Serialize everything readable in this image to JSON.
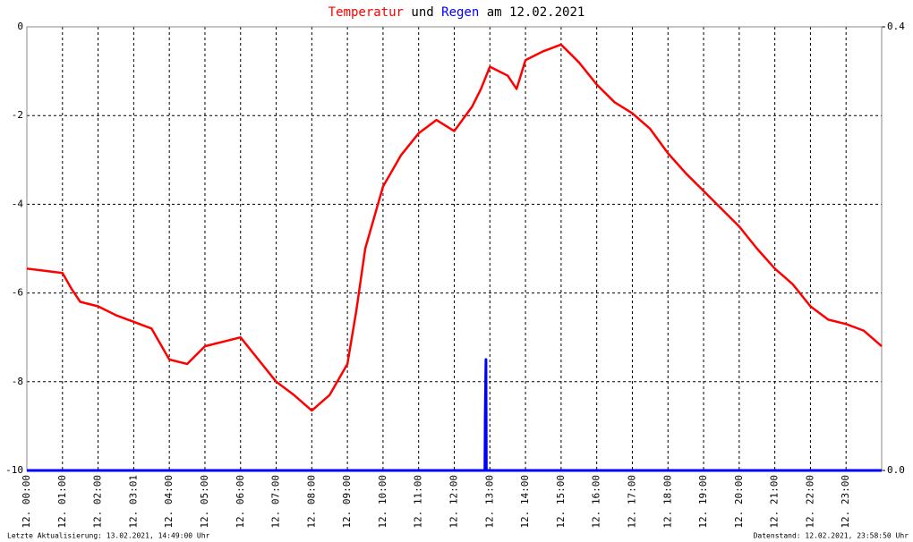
{
  "chart_data": {
    "type": "line",
    "title_connector": "und",
    "title_suffix": "am 12.02.2021",
    "footer_left": "Letzte Aktualisierung: 13.02.2021, 14:49:00 Uhr",
    "footer_right": "Datenstand: 12.02.2021, 23:58:50 Uhr",
    "xlim": [
      0,
      24
    ],
    "xticks": [
      {
        "value": 0,
        "label": "12. 00:00"
      },
      {
        "value": 1,
        "label": "12. 01:00"
      },
      {
        "value": 2,
        "label": "12. 02:00"
      },
      {
        "value": 3,
        "label": "12. 03:01"
      },
      {
        "value": 4,
        "label": "12. 04:00"
      },
      {
        "value": 5,
        "label": "12. 05:00"
      },
      {
        "value": 6,
        "label": "12. 06:00"
      },
      {
        "value": 7,
        "label": "12. 07:00"
      },
      {
        "value": 8,
        "label": "12. 08:00"
      },
      {
        "value": 9,
        "label": "12. 09:00"
      },
      {
        "value": 10,
        "label": "12. 10:00"
      },
      {
        "value": 11,
        "label": "12. 11:00"
      },
      {
        "value": 12,
        "label": "12. 12:00"
      },
      {
        "value": 13,
        "label": "12. 13:00"
      },
      {
        "value": 14,
        "label": "12. 14:00"
      },
      {
        "value": 15,
        "label": "12. 15:00"
      },
      {
        "value": 16,
        "label": "12. 16:00"
      },
      {
        "value": 17,
        "label": "12. 17:00"
      },
      {
        "value": 18,
        "label": "12. 18:00"
      },
      {
        "value": 19,
        "label": "12. 19:00"
      },
      {
        "value": 20,
        "label": "12. 20:00"
      },
      {
        "value": 21,
        "label": "12. 21:00"
      },
      {
        "value": 22,
        "label": "12. 22:00"
      },
      {
        "value": 23,
        "label": "12. 23:00"
      }
    ],
    "ylim": [
      -10,
      0
    ],
    "yticks": [
      -10,
      -8,
      -6,
      -4,
      -2,
      0
    ],
    "y2lim": [
      0,
      0.4
    ],
    "y2ticks": [
      {
        "value": 0,
        "label": "0.0"
      },
      {
        "value": 0.4,
        "label": "0.4"
      }
    ],
    "grid": true,
    "series": [
      {
        "name": "Temperatur",
        "color": "#ff0000",
        "x": [
          0,
          0.5,
          1,
          1.25,
          1.5,
          2,
          2.5,
          3,
          3.5,
          4,
          4.5,
          5,
          5.5,
          6,
          6.5,
          7,
          7.5,
          8,
          8.5,
          9,
          9.25,
          9.5,
          9.75,
          10,
          10.5,
          11,
          11.5,
          12,
          12.5,
          12.75,
          13,
          13.5,
          13.75,
          14,
          14.5,
          15,
          15.5,
          16,
          16.5,
          17,
          17.5,
          18,
          18.5,
          19,
          19.5,
          20,
          20.5,
          21,
          21.5,
          22,
          22.5,
          23,
          23.5,
          24
        ],
        "values": [
          -5.45,
          -5.5,
          -5.55,
          -5.9,
          -6.2,
          -6.3,
          -6.5,
          -6.65,
          -6.8,
          -7.5,
          -7.6,
          -7.2,
          -7.1,
          -7.0,
          -7.5,
          -8.0,
          -8.3,
          -8.65,
          -8.3,
          -7.6,
          -6.4,
          -5.0,
          -4.3,
          -3.6,
          -2.9,
          -2.4,
          -2.1,
          -2.35,
          -1.8,
          -1.4,
          -0.9,
          -1.1,
          -1.4,
          -0.75,
          -0.55,
          -0.4,
          -0.8,
          -1.3,
          -1.7,
          -1.95,
          -2.3,
          -2.85,
          -3.3,
          -3.7,
          -4.1,
          -4.5,
          -5.0,
          -5.45,
          -5.8,
          -6.3,
          -6.6,
          -6.7,
          -6.85,
          -7.2
        ]
      },
      {
        "name": "Regen",
        "color": "#0000ff",
        "axis": "y2",
        "x": [
          0,
          12.86,
          12.87,
          12.89,
          12.9,
          24
        ],
        "values": [
          0,
          0,
          0.05,
          0.1,
          0,
          0
        ]
      }
    ]
  }
}
